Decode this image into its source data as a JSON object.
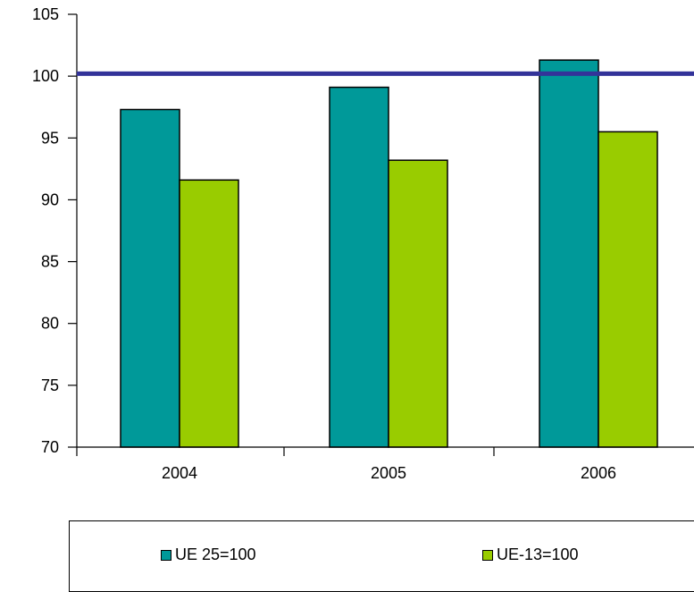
{
  "chart_data": {
    "type": "bar",
    "title": "",
    "xlabel": "",
    "ylabel": "",
    "categories": [
      "2004",
      "2005",
      "2006"
    ],
    "series": [
      {
        "name": "UE 25=100",
        "color": "#009999",
        "values": [
          97.3,
          99.1,
          101.3
        ]
      },
      {
        "name": "UE-13=100",
        "color": "#99CC00",
        "values": [
          91.6,
          93.2,
          95.5
        ]
      }
    ],
    "reference_line": {
      "value": 100.2,
      "color": "#333399"
    },
    "ylim": [
      70,
      105
    ],
    "yticks": [
      "70",
      "75",
      "80",
      "85",
      "90",
      "95",
      "100",
      "105"
    ],
    "grid": false,
    "legend_position": "bottom"
  }
}
